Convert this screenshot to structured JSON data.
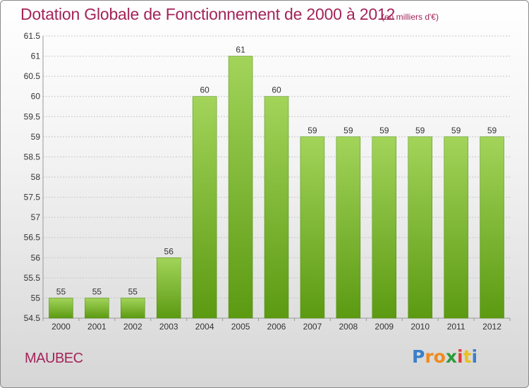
{
  "title": "Dotation Globale de Fonctionnement de 2000 à 2012",
  "unit_note": "(en milliers d'€)",
  "commune": "MAUBEC",
  "logo": {
    "letters": [
      "P",
      "r",
      "o",
      "x",
      "i",
      "t",
      "i"
    ],
    "colors": [
      "#3a7fc8",
      "#f08a1c",
      "#f08a1c",
      "#2c9c3c",
      "#e03c3c",
      "#e8c020",
      "#3a7fc8"
    ]
  },
  "colors": {
    "bar_top": "#a2d45a",
    "bar_bottom": "#5c9a12",
    "bar_stroke": "#4d8a0e",
    "grid": "#c8c8c8",
    "axis": "#999999"
  },
  "chart_data": {
    "type": "bar",
    "categories": [
      "2000",
      "2001",
      "2002",
      "2003",
      "2004",
      "2005",
      "2006",
      "2007",
      "2008",
      "2009",
      "2010",
      "2011",
      "2012"
    ],
    "values": [
      55,
      55,
      55,
      56,
      60,
      61,
      60,
      59,
      59,
      59,
      59,
      59,
      59
    ],
    "value_labels": [
      "55",
      "55",
      "55",
      "56",
      "60",
      "61",
      "60",
      "59",
      "59",
      "59",
      "59",
      "59",
      "59"
    ],
    "ylim": [
      54.5,
      61.5
    ],
    "yticks": [
      54.5,
      55,
      55.5,
      56,
      56.5,
      57,
      57.5,
      58,
      58.5,
      59,
      59.5,
      60,
      60.5,
      61,
      61.5
    ],
    "ytick_labels": [
      "54.5",
      "55",
      "55.5",
      "56",
      "56.5",
      "57",
      "57.5",
      "58",
      "58.5",
      "59",
      "59.5",
      "60",
      "60.5",
      "61",
      "61.5"
    ],
    "grid": true
  }
}
